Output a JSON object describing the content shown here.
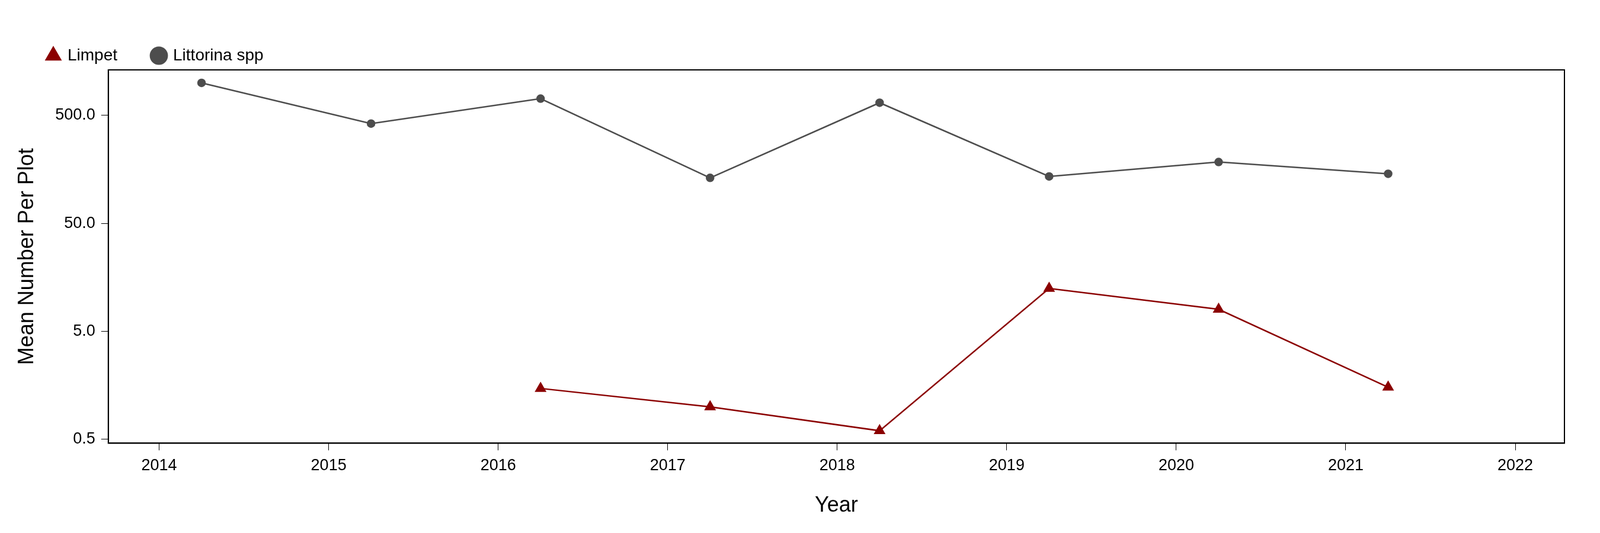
{
  "chart_data": {
    "type": "line",
    "x_label": "Year",
    "y_label": "Mean Number Per Plot",
    "x": [
      2014.25,
      2015.25,
      2016.25,
      2017.25,
      2018.25,
      2019.25,
      2020.25,
      2021.25
    ],
    "series": [
      {
        "name": "Limpet",
        "color": "#8b0000",
        "marker": "triangle",
        "line_style": "solid",
        "values": [
          null,
          null,
          1.48,
          1.0,
          0.6,
          12.5,
          8.0,
          1.52
        ]
      },
      {
        "name": "Littorina spp",
        "color": "#4d4d4d",
        "marker": "circle",
        "line_style": "solid",
        "values": [
          1000,
          420,
          715,
          132,
          655,
          136,
          185,
          144
        ]
      }
    ],
    "xlim": [
      2013.7,
      2022.29
    ],
    "xticks": [
      2014,
      2015,
      2016,
      2017,
      2018,
      2019,
      2020,
      2021,
      2022
    ],
    "ylim": [
      0.46,
      1320
    ],
    "yticks": [
      0.5,
      {
        "value": 5,
        "label": "5.0"
      },
      {
        "value": 50,
        "label": "50.0"
      },
      {
        "value": 500,
        "label": "500.0"
      }
    ],
    "log": "y",
    "grid": false,
    "legend": "top-left"
  }
}
